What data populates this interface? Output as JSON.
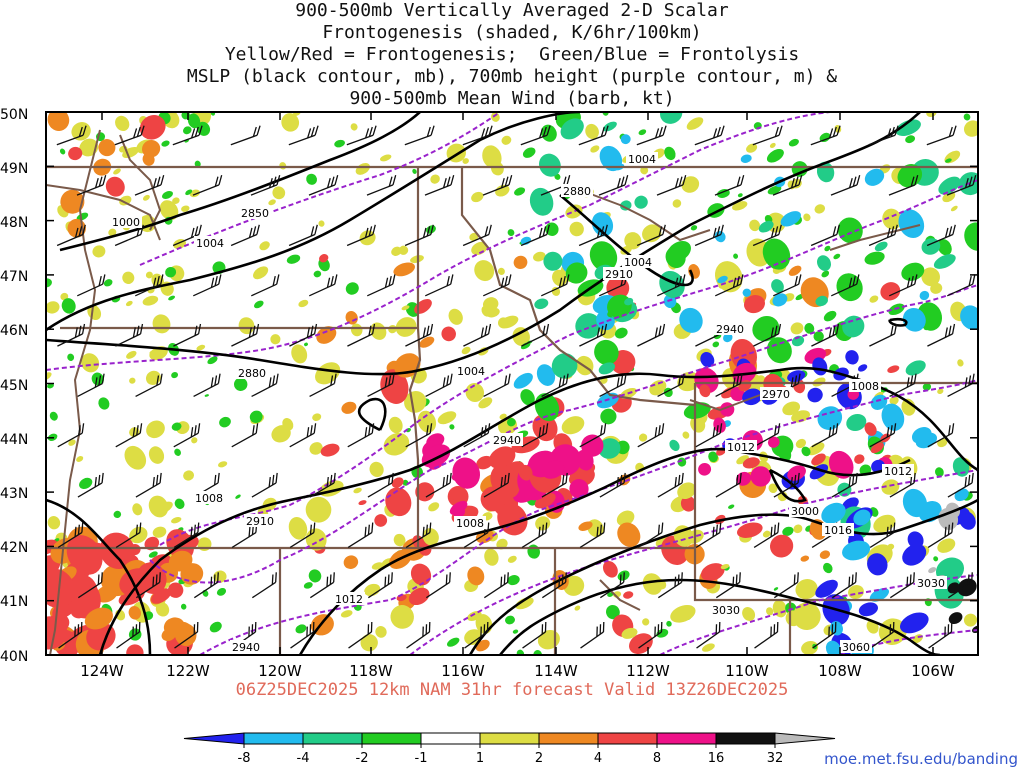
{
  "title": {
    "line1": "900-500mb Vertically Averaged 2-D Scalar",
    "line2": "Frontogenesis (shaded, K/6hr/100km)",
    "line3": "Yellow/Red = Frontogenesis;  Green/Blue = Frontolysis",
    "line4": "MSLP (black contour, mb), 700mb height (purple contour, m) &",
    "line5": "900-500mb Mean Wind (barb, kt)"
  },
  "lat_labels": [
    "50N",
    "49N",
    "48N",
    "47N",
    "46N",
    "45N",
    "44N",
    "43N",
    "42N",
    "41N",
    "40N"
  ],
  "lon_labels": [
    "124W",
    "122W",
    "120W",
    "118W",
    "116W",
    "114W",
    "112W",
    "110W",
    "108W",
    "106W"
  ],
  "footer": "06Z25DEC2025 12km NAM 31hr forecast Valid 13Z26DEC2025",
  "url": "moe.met.fsu.edu/banding",
  "colorbar": {
    "labels": [
      "-8",
      "-4",
      "-2",
      "-1",
      "1",
      "2",
      "4",
      "8",
      "16",
      "32"
    ],
    "colors": [
      "#2222ee",
      "#22bbee",
      "#22cc88",
      "#22cc22",
      "#ffffff",
      "#dddd44",
      "#ee8822",
      "#ee4444",
      "#ee1188",
      "#111111",
      "#bbbbbb"
    ]
  },
  "contour_labels": {
    "mslp": [
      "1004",
      "1000",
      "1004",
      "1004",
      "1004",
      "1008",
      "1012",
      "1012",
      "1008",
      "1008",
      "1016",
      "1012",
      "1008"
    ],
    "height": [
      "2850",
      "2880",
      "2880",
      "2910",
      "2940",
      "2940",
      "2970",
      "3000",
      "2910",
      "3030",
      "3030",
      "3060",
      "2940"
    ]
  },
  "colors": {
    "mslp": "#000000",
    "height": "#9922cc",
    "borders": "#7a5a4a"
  }
}
